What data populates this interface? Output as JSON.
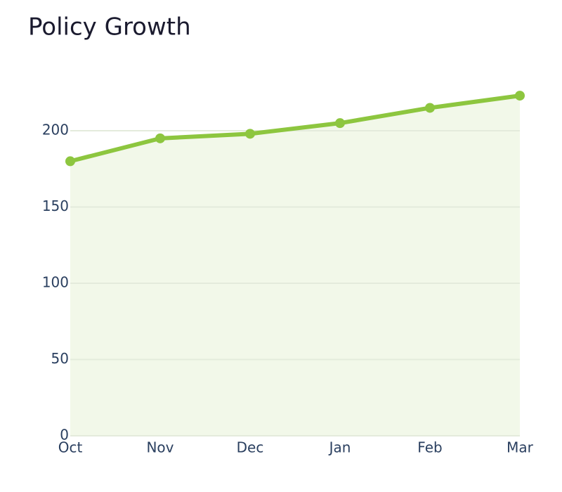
{
  "chart_data": {
    "type": "area",
    "title": "Policy Growth",
    "categories": [
      "Oct",
      "Nov",
      "Dec",
      "Jan",
      "Feb",
      "Mar"
    ],
    "values": [
      180,
      195,
      198,
      205,
      215,
      223
    ],
    "color": "#8dc63f",
    "fill": "#f2f8e9",
    "ylim": [
      0,
      240
    ],
    "yticks": [
      0,
      50,
      100,
      150,
      200
    ],
    "grid": true
  }
}
